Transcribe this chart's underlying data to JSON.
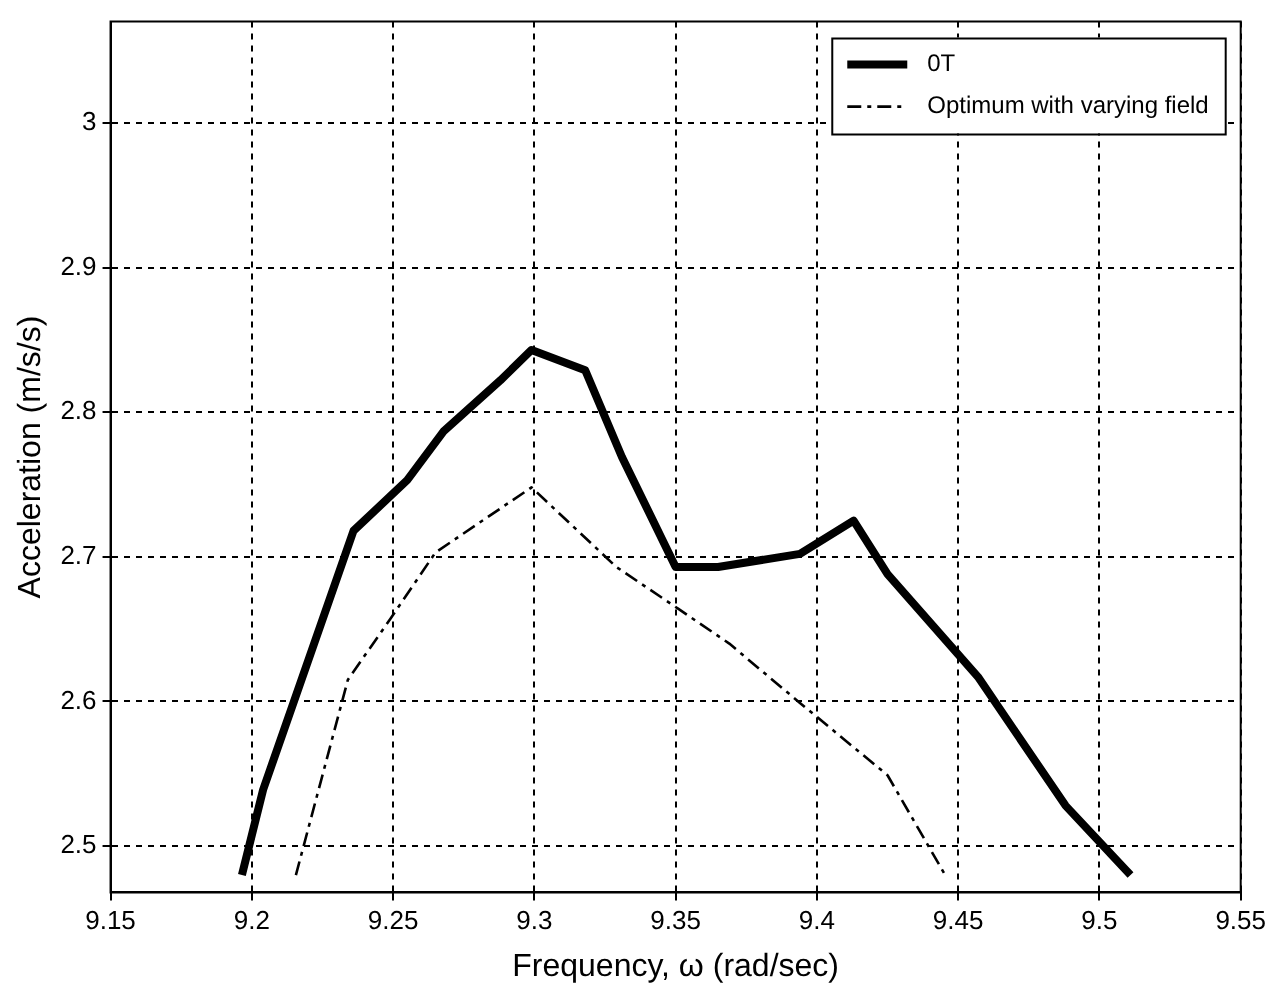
{
  "chart_data": {
    "type": "line",
    "xlabel": "Frequency, ω (rad/sec)",
    "ylabel": "Acceleration (m/s/s)",
    "xlim": [
      9.15,
      9.55
    ],
    "xticks": [
      9.15,
      9.2,
      9.25,
      9.3,
      9.35,
      9.4,
      9.45,
      9.5,
      9.55
    ],
    "ylim": [
      2.468,
      3.07
    ],
    "yticks": [
      2.5,
      2.6,
      2.7,
      2.8,
      2.9,
      3
    ],
    "grid": true,
    "legend": "top right",
    "marker": "none",
    "series": [
      {
        "name": "0T",
        "color": "#000000",
        "line_style": "solid",
        "x": [
          9.1965,
          9.204,
          9.236,
          9.255,
          9.268,
          9.288,
          9.299,
          9.318,
          9.331,
          9.35,
          9.365,
          9.394,
          9.413,
          9.425,
          9.457,
          9.488,
          9.511
        ],
        "values": [
          2.48,
          2.539,
          2.718,
          2.753,
          2.787,
          2.822,
          2.843,
          2.829,
          2.769,
          2.693,
          2.693,
          2.702,
          2.725,
          2.688,
          2.617,
          2.528,
          2.48
        ]
      },
      {
        "name": "Optimum with varying field",
        "color": "#000000",
        "line_style": "dashed",
        "x": [
          9.2156,
          9.234,
          9.249,
          9.265,
          9.299,
          9.329,
          9.351,
          9.369,
          9.394,
          9.425,
          9.4454
        ],
        "values": [
          2.48,
          2.615,
          2.657,
          2.703,
          2.748,
          2.693,
          2.664,
          2.64,
          2.599,
          2.549,
          2.48
        ]
      }
    ]
  }
}
